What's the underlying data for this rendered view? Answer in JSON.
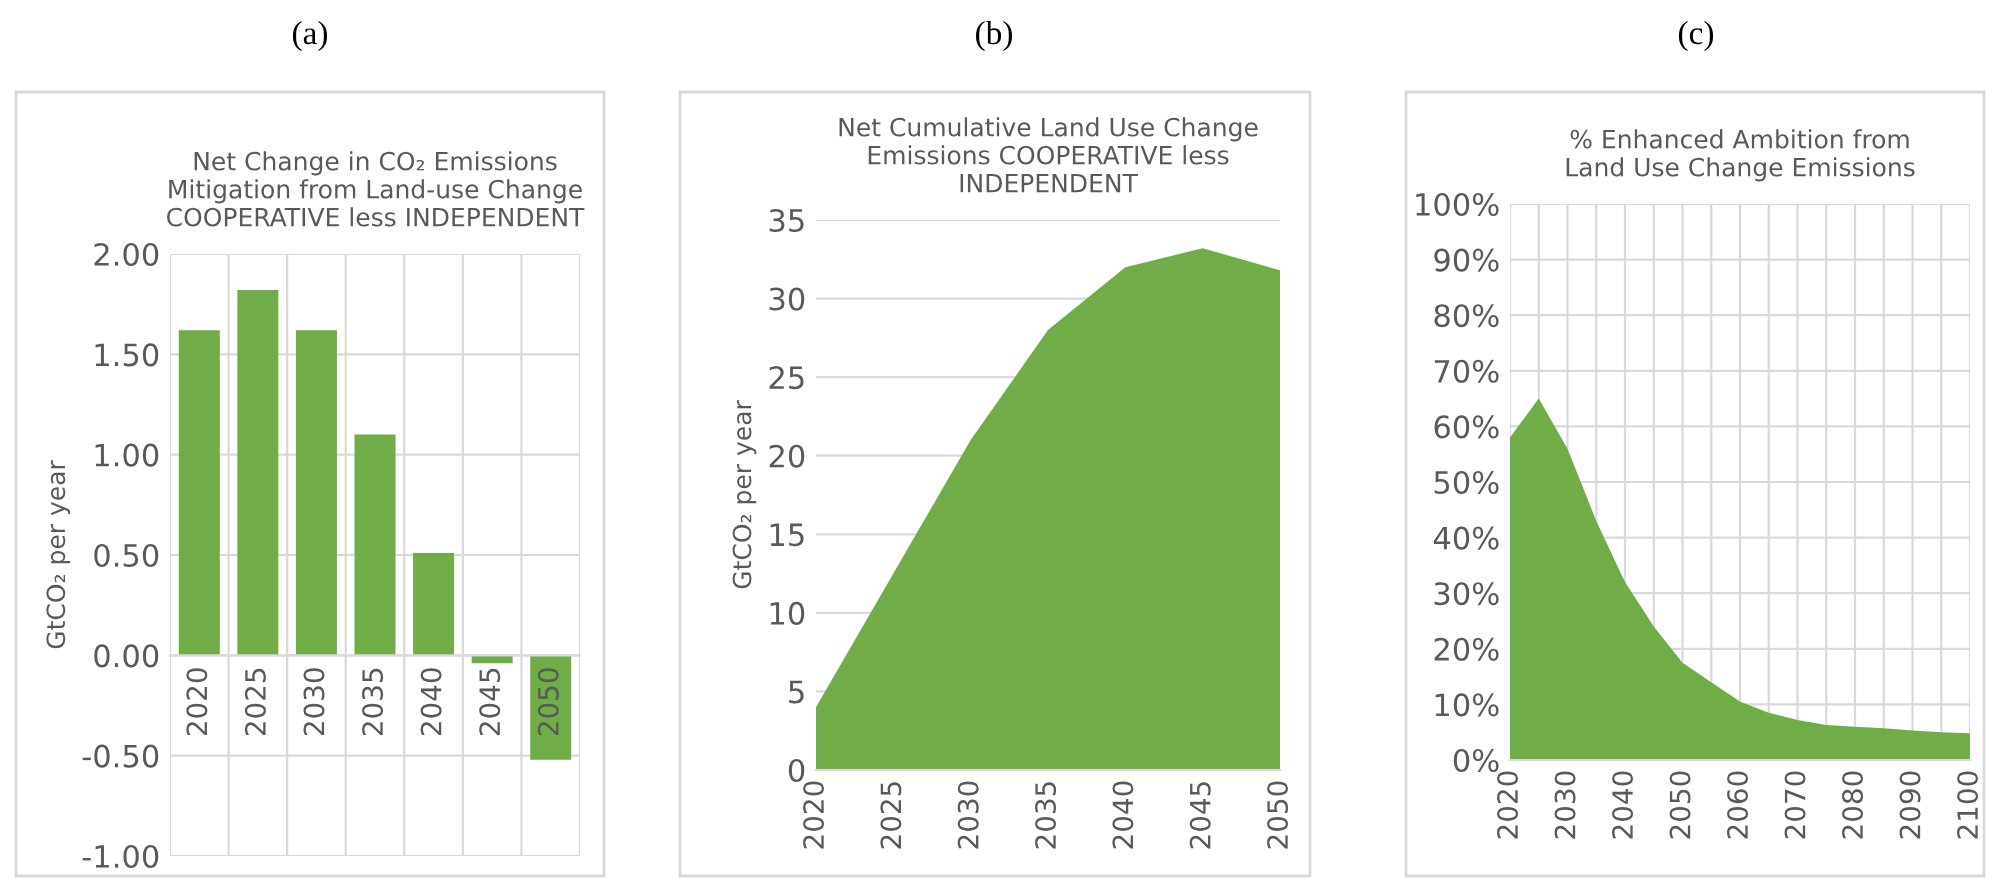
{
  "chart_data": [
    {
      "type": "bar",
      "title": "Net Change in CO₂ Emissions\nMitigation from Land-use Change\nCOOPERATIVE less INDEPENDENT",
      "ylabel": "GtCO₂ per year",
      "annotations": [
        "(a)"
      ],
      "categories": [
        "2020",
        "2025",
        "2030",
        "2035",
        "2040",
        "2045",
        "2050"
      ],
      "values": [
        1.62,
        1.82,
        1.62,
        1.1,
        0.51,
        -0.04,
        -0.52
      ],
      "color": "#70ad47",
      "ylim": [
        -1.0,
        2.0
      ],
      "yticks": [
        {
          "value": -1.0,
          "label": "-1.00"
        },
        {
          "value": -0.5,
          "label": "-0.50"
        },
        {
          "value": 0,
          "label": "0.00"
        },
        {
          "value": 0.5,
          "label": "0.50"
        },
        {
          "value": 1.0,
          "label": "1.00"
        },
        {
          "value": 1.5,
          "label": "1.50"
        },
        {
          "value": 2.0,
          "label": "2.00"
        }
      ],
      "grid": true
    },
    {
      "type": "area",
      "title": "Net Cumulative Land Use Change\nEmissions COOPERATIVE less\nINDEPENDENT",
      "ylabel": "GtCO₂ per year",
      "annotations": [
        "(b)"
      ],
      "x": [
        2020,
        2025,
        2030,
        2035,
        2040,
        2045,
        2050
      ],
      "values": [
        4,
        12.5,
        21,
        28,
        32,
        33.2,
        31.8
      ],
      "color": "#70ad47",
      "xlim": [
        2020,
        2050
      ],
      "xticks": [
        2020,
        2025,
        2030,
        2035,
        2040,
        2045,
        2050
      ],
      "ylim": [
        0,
        35
      ],
      "yticks": [
        0,
        5,
        10,
        15,
        20,
        25,
        30,
        35
      ],
      "grid": "y"
    },
    {
      "type": "area",
      "title": "% Enhanced Ambition from\nLand Use Change Emissions",
      "annotations": [
        "(c)"
      ],
      "x": [
        2020,
        2025,
        2030,
        2035,
        2040,
        2045,
        2050,
        2055,
        2060,
        2065,
        2070,
        2075,
        2080,
        2085,
        2090,
        2095,
        2100
      ],
      "values": [
        58,
        65,
        56,
        43,
        32,
        24,
        17.5,
        14,
        10.5,
        8.5,
        7.2,
        6.3,
        6,
        5.7,
        5.3,
        5,
        4.8
      ],
      "color": "#70ad47",
      "xlim": [
        2020,
        2100
      ],
      "xticks": [
        2020,
        {
          "value": 2025,
          "label": null
        },
        2030,
        {
          "value": 2035,
          "label": null
        },
        2040,
        {
          "value": 2045,
          "label": null
        },
        2050,
        {
          "value": 2055,
          "label": null
        },
        2060,
        {
          "value": 2065,
          "label": null
        },
        2070,
        {
          "value": 2075,
          "label": null
        },
        2080,
        {
          "value": 2085,
          "label": null
        },
        2090,
        {
          "value": 2095,
          "label": null
        },
        2100
      ],
      "ylim": [
        0,
        100
      ],
      "yticks": [
        {
          "value": 0,
          "label": "0%"
        },
        {
          "value": 10,
          "label": "10%"
        },
        {
          "value": 20,
          "label": "20%"
        },
        {
          "value": 30,
          "label": "30%"
        },
        {
          "value": 40,
          "label": "40%"
        },
        {
          "value": 50,
          "label": "50%"
        },
        {
          "value": 60,
          "label": "60%"
        },
        {
          "value": 70,
          "label": "70%"
        },
        {
          "value": 80,
          "label": "80%"
        },
        {
          "value": 90,
          "label": "90%"
        },
        {
          "value": 100,
          "label": "100%"
        }
      ],
      "grid": true
    }
  ]
}
